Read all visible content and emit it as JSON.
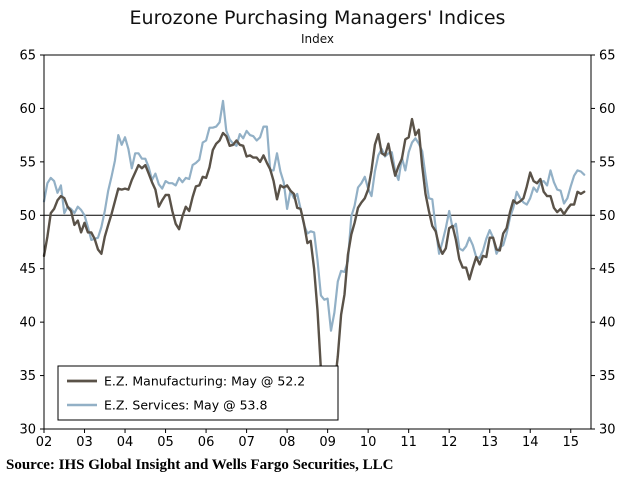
{
  "source": "Source: IHS Global Insight and Wells Fargo Securities, LLC",
  "chart_data": {
    "type": "line",
    "title": "Eurozone Purchasing Managers' Indices",
    "subtitle": "Index",
    "xlabel": "",
    "ylabel": "Index",
    "ylim": [
      30,
      65
    ],
    "yticks": [
      30,
      35,
      40,
      45,
      50,
      55,
      60,
      65
    ],
    "reference_line": 50,
    "grid": false,
    "legend_position": "bottom-left",
    "x_start": "2002-01",
    "x_end": "2015-05",
    "x_tick_labels": [
      "02",
      "03",
      "04",
      "05",
      "06",
      "07",
      "08",
      "09",
      "10",
      "11",
      "12",
      "13",
      "14",
      "15"
    ],
    "x_domain_months": 162,
    "series": [
      {
        "name": "E.Z. Manufacturing: May @ 52.2",
        "color": "#5a5248",
        "line_width": 2.4,
        "values": [
          46.2,
          48.0,
          50.2,
          50.6,
          51.4,
          51.8,
          51.6,
          50.8,
          50.4,
          49.1,
          49.5,
          48.4,
          49.3,
          48.4,
          48.4,
          47.8,
          46.8,
          46.4,
          48.0,
          49.1,
          50.1,
          51.3,
          52.5,
          52.4,
          52.5,
          52.4,
          53.3,
          54.0,
          54.7,
          54.4,
          54.7,
          53.9,
          53.1,
          52.4,
          50.8,
          51.4,
          51.9,
          51.9,
          50.4,
          49.2,
          48.7,
          49.9,
          50.8,
          50.4,
          51.7,
          52.7,
          52.8,
          53.6,
          53.5,
          54.5,
          56.1,
          56.7,
          57.0,
          57.7,
          57.4,
          56.5,
          56.6,
          57.0,
          56.6,
          56.5,
          55.5,
          55.6,
          55.4,
          55.4,
          55.0,
          55.6,
          54.9,
          54.3,
          53.2,
          51.5,
          52.8,
          52.6,
          52.8,
          52.3,
          52.0,
          50.7,
          50.6,
          49.2,
          47.4,
          47.6,
          45.0,
          41.1,
          35.6,
          33.9,
          34.4,
          33.5,
          33.9,
          36.8,
          40.7,
          42.6,
          46.3,
          48.2,
          49.3,
          50.7,
          51.2,
          51.6,
          52.4,
          54.2,
          56.6,
          57.6,
          55.8,
          55.6,
          56.7,
          55.1,
          53.7,
          54.6,
          55.3,
          57.1,
          57.3,
          59.0,
          57.5,
          58.0,
          54.6,
          52.0,
          50.4,
          49.0,
          48.5,
          47.1,
          46.4,
          46.9,
          48.8,
          49.0,
          47.7,
          45.9,
          45.1,
          45.1,
          44.0,
          45.1,
          46.1,
          45.4,
          46.2,
          46.1,
          47.9,
          47.9,
          46.8,
          46.7,
          48.3,
          48.8,
          50.3,
          51.4,
          51.1,
          51.3,
          51.6,
          52.7,
          54.0,
          53.2,
          53.0,
          53.4,
          52.2,
          51.8,
          51.8,
          50.7,
          50.3,
          50.6,
          50.1,
          50.6,
          51.0,
          51.0,
          52.2,
          52.0,
          52.2
        ]
      },
      {
        "name": "E.Z. Services: May @ 53.8",
        "color": "#92b0c6",
        "line_width": 2.2,
        "values": [
          51.3,
          53.0,
          53.5,
          53.2,
          52.1,
          52.8,
          50.2,
          50.8,
          50.6,
          50.2,
          50.8,
          50.5,
          50.0,
          48.9,
          47.7,
          47.8,
          47.9,
          48.9,
          50.4,
          52.3,
          53.6,
          55.1,
          57.5,
          56.6,
          57.3,
          56.2,
          54.4,
          55.8,
          55.8,
          55.3,
          55.3,
          54.5,
          53.3,
          53.9,
          52.9,
          52.5,
          53.2,
          53.0,
          53.0,
          52.8,
          53.5,
          53.1,
          53.5,
          53.4,
          54.7,
          54.9,
          55.2,
          56.8,
          57.0,
          58.2,
          58.2,
          58.3,
          58.7,
          60.7,
          57.9,
          57.1,
          56.7,
          56.5,
          57.6,
          57.2,
          57.9,
          57.5,
          57.4,
          57.0,
          57.3,
          58.3,
          58.3,
          54.2,
          54.2,
          55.8,
          54.1,
          53.1,
          50.6,
          52.3,
          51.6,
          52.0,
          50.6,
          49.1,
          48.3,
          48.5,
          48.4,
          45.8,
          42.5,
          42.1,
          42.2,
          39.2,
          40.9,
          43.8,
          44.8,
          44.7,
          45.7,
          49.9,
          50.9,
          52.6,
          53.0,
          53.6,
          52.5,
          51.8,
          54.1,
          55.6,
          56.2,
          55.5,
          55.8,
          55.9,
          54.1,
          53.3,
          55.4,
          54.2,
          55.9,
          56.8,
          57.2,
          56.7,
          56.0,
          53.7,
          51.6,
          51.5,
          48.8,
          46.4,
          47.5,
          48.8,
          50.4,
          48.8,
          49.2,
          46.9,
          46.7,
          47.1,
          47.9,
          47.2,
          46.1,
          46.0,
          46.7,
          47.8,
          48.6,
          47.9,
          46.4,
          47.0,
          47.2,
          48.3,
          49.8,
          50.7,
          52.2,
          51.6,
          51.2,
          51.0,
          51.6,
          52.6,
          52.2,
          53.1,
          53.2,
          52.8,
          54.2,
          53.1,
          52.4,
          52.3,
          51.1,
          51.6,
          52.7,
          53.7,
          54.2,
          54.1,
          53.8
        ]
      }
    ]
  }
}
